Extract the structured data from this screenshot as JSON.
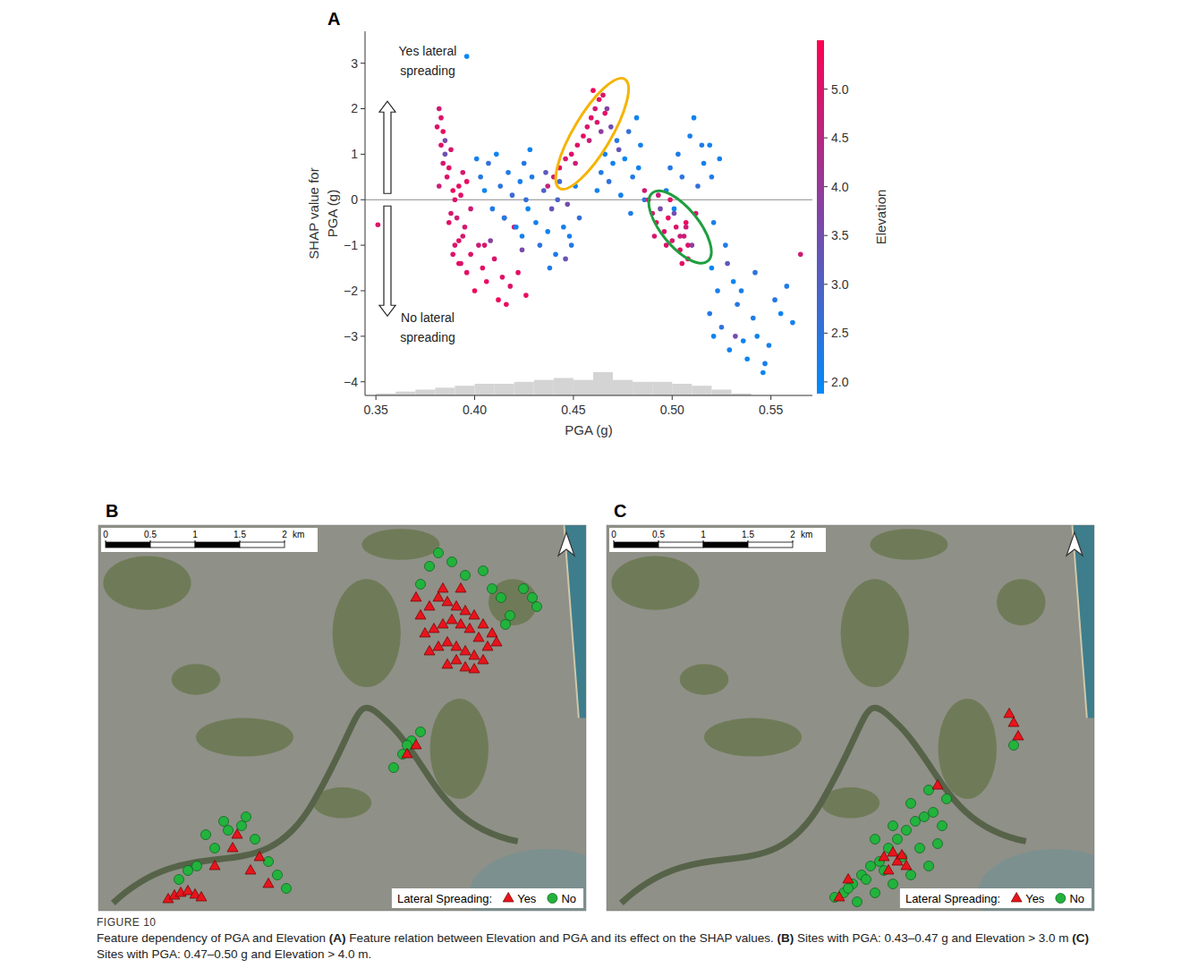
{
  "chart_data": {
    "type": "scatter",
    "letter": "A",
    "x_label": "PGA (g)",
    "y_label": "SHAP value for\nPGA (g)",
    "xlim": [
      0.3445,
      0.571
    ],
    "ylim": [
      -4.3,
      3.7
    ],
    "xticks": [
      0.35,
      {
        "value": 0.4,
        "label": "0.40"
      },
      0.45,
      {
        "value": 0.5,
        "label": "0.50"
      },
      0.55
    ],
    "yticks": [
      {
        "value": -4,
        "label": "−4"
      },
      {
        "value": -3,
        "label": "−3"
      },
      {
        "value": -2,
        "label": "−2"
      },
      {
        "value": -1,
        "label": "−1"
      },
      0,
      1,
      2,
      3
    ],
    "grid": false,
    "marker": "circle",
    "annotations": [
      "Yes lateral spreading",
      "No lateral spreading"
    ],
    "colorbar": {
      "label": "Elevation",
      "range": [
        1.88,
        5.5
      ],
      "colors": [
        "#008bfb",
        "#ff0052"
      ],
      "ticks": [
        {
          "value": 2,
          "label": "2.0"
        },
        2.5,
        {
          "value": 3,
          "label": "3.0"
        },
        3.5,
        {
          "value": 4,
          "label": "4.0"
        },
        4.5,
        {
          "value": 5,
          "label": "5.0"
        }
      ]
    },
    "histogram": {
      "bins": [
        0.35,
        0.36,
        0.37,
        0.38,
        0.39,
        0.4,
        0.41,
        0.42,
        0.43,
        0.44,
        0.45,
        0.46,
        0.47,
        0.48,
        0.49,
        0.5,
        0.51,
        0.52,
        0.53,
        0.54
      ],
      "counts": [
        1,
        2,
        3,
        4,
        5,
        6,
        6,
        7,
        8,
        9,
        8,
        12,
        8,
        7,
        7,
        6,
        5,
        3,
        1
      ]
    },
    "ellipses": [
      {
        "color": "#f5b400",
        "x": [
          0.443,
          0.476
        ],
        "y": [
          0.25,
          2.65
        ]
      },
      {
        "color": "#1f9e3f",
        "x": [
          0.49,
          0.518
        ],
        "y": [
          0.15,
          -1.35
        ]
      }
    ],
    "series": [
      {
        "x": [
          0.381,
          0.382,
          0.383,
          0.384,
          0.384,
          0.385,
          0.386,
          0.382,
          0.383,
          0.385,
          0.387,
          0.388
        ],
        "values": [
          1.6,
          2.0,
          1.2,
          0.8,
          1.5,
          1.0,
          0.5,
          0.3,
          1.8,
          1.3,
          0.7,
          1.1
        ],
        "elevation": [
          5.0,
          4.8,
          5.1,
          4.9,
          5.2,
          3.4,
          5.0,
          4.7,
          5.0,
          3.6,
          5.1,
          4.9
        ]
      },
      {
        "x": [
          0.351,
          0.387,
          0.388,
          0.389,
          0.39,
          0.391,
          0.392,
          0.393,
          0.394,
          0.396,
          0.398,
          0.389,
          0.392,
          0.395
        ],
        "values": [
          -0.55,
          -0.5,
          -0.3,
          0.2,
          0.0,
          -0.4,
          0.3,
          0.1,
          0.6,
          0.4,
          -0.2,
          -1.2,
          -0.9,
          -0.6
        ],
        "elevation": [
          5.0,
          5.1,
          4.9,
          5.2,
          5.0,
          4.8,
          5.1,
          5.0,
          4.9,
          5.2,
          4.8,
          5.0,
          5.1,
          4.9
        ]
      },
      {
        "x": [
          0.39,
          0.392,
          0.394,
          0.396,
          0.398,
          0.4,
          0.402,
          0.404,
          0.406,
          0.408,
          0.41,
          0.412,
          0.414,
          0.416,
          0.418,
          0.42,
          0.422,
          0.424,
          0.426,
          0.393,
          0.405,
          0.415
        ],
        "values": [
          -1.0,
          -1.4,
          -0.8,
          -1.6,
          -1.2,
          -2.0,
          -1.0,
          -1.5,
          -1.8,
          -0.9,
          -1.3,
          -2.2,
          -1.7,
          -2.3,
          -1.9,
          -0.6,
          -1.6,
          -1.1,
          -2.1,
          -1.4,
          -1.0,
          -0.4
        ],
        "elevation": [
          5.0,
          5.2,
          4.9,
          5.1,
          5.0,
          5.3,
          4.8,
          5.1,
          5.2,
          3.8,
          5.0,
          5.3,
          5.1,
          5.2,
          5.0,
          4.7,
          5.1,
          3.6,
          5.2,
          5.0,
          4.9,
          5.0
        ]
      },
      {
        "x": [
          0.401,
          0.403,
          0.405,
          0.407,
          0.409,
          0.411,
          0.413,
          0.415,
          0.417,
          0.419,
          0.421,
          0.423,
          0.425,
          0.427,
          0.429,
          0.424,
          0.426,
          0.428,
          0.396
        ],
        "values": [
          0.9,
          0.5,
          0.2,
          0.8,
          -0.2,
          1.0,
          0.3,
          -0.4,
          0.6,
          0.1,
          -0.6,
          0.4,
          0.8,
          -0.2,
          0.5,
          -0.8,
          0.0,
          1.1,
          3.15
        ],
        "elevation": [
          2.2,
          2.4,
          2.1,
          2.6,
          2.3,
          2.1,
          2.5,
          2.2,
          2.3,
          2.7,
          2.1,
          2.2,
          2.4,
          2.0,
          2.3,
          2.2,
          2.6,
          2.1,
          2.0
        ]
      },
      {
        "x": [
          0.431,
          0.433,
          0.435,
          0.437,
          0.439,
          0.441,
          0.443,
          0.445,
          0.447,
          0.449,
          0.451,
          0.453,
          0.436,
          0.442,
          0.448,
          0.438,
          0.446
        ],
        "values": [
          -0.5,
          -1.0,
          0.2,
          -0.7,
          -0.2,
          -1.2,
          0.4,
          -0.6,
          -0.1,
          -1.0,
          0.3,
          -0.4,
          0.6,
          0.0,
          -0.8,
          -1.5,
          -1.3
        ],
        "elevation": [
          2.2,
          2.5,
          3.0,
          2.1,
          3.3,
          2.3,
          2.8,
          2.2,
          3.5,
          2.4,
          2.1,
          2.6,
          3.2,
          2.9,
          2.2,
          2.3,
          3.4
        ]
      },
      {
        "x": [
          0.437,
          0.44,
          0.443,
          0.446,
          0.449,
          0.452,
          0.455,
          0.457,
          0.459,
          0.461,
          0.463,
          0.465,
          0.467,
          0.469,
          0.458,
          0.462,
          0.466,
          0.46,
          0.464,
          0.451
        ],
        "values": [
          0.3,
          0.5,
          0.7,
          0.9,
          1.0,
          1.2,
          1.4,
          1.6,
          1.8,
          2.0,
          2.2,
          2.3,
          2.0,
          1.6,
          1.3,
          1.7,
          1.9,
          2.4,
          1.5,
          0.8
        ],
        "elevation": [
          4.6,
          4.8,
          5.0,
          4.9,
          5.1,
          5.0,
          5.2,
          5.0,
          5.1,
          4.9,
          5.2,
          5.0,
          3.8,
          3.5,
          4.7,
          5.0,
          5.1,
          5.3,
          3.9,
          4.8
        ]
      },
      {
        "x": [
          0.462,
          0.464,
          0.466,
          0.468,
          0.47,
          0.472,
          0.474,
          0.476,
          0.478,
          0.48,
          0.482,
          0.484,
          0.486,
          0.479,
          0.483,
          0.473
        ],
        "values": [
          0.2,
          0.6,
          1.0,
          0.4,
          0.8,
          1.3,
          0.1,
          0.9,
          1.5,
          0.5,
          1.8,
          1.2,
          0.0,
          -0.3,
          0.7,
          1.1
        ],
        "elevation": [
          2.1,
          2.3,
          2.2,
          2.5,
          2.1,
          2.4,
          2.2,
          2.0,
          2.6,
          2.3,
          2.1,
          2.2,
          2.5,
          2.3,
          2.1,
          3.3
        ]
      },
      {
        "x": [
          0.486,
          0.488,
          0.49,
          0.492,
          0.494,
          0.496,
          0.498,
          0.5,
          0.502,
          0.504,
          0.506,
          0.508,
          0.51,
          0.493,
          0.497,
          0.501,
          0.505,
          0.491,
          0.499,
          0.507
        ],
        "values": [
          0.2,
          0.0,
          -0.3,
          -0.5,
          -0.2,
          -0.7,
          -0.4,
          -0.9,
          -0.6,
          -1.1,
          -0.8,
          -1.3,
          -1.0,
          0.1,
          -1.0,
          -0.3,
          -1.4,
          -0.8,
          0.0,
          -0.5
        ],
        "elevation": [
          4.8,
          5.0,
          4.9,
          5.1,
          3.6,
          5.0,
          5.2,
          4.9,
          5.0,
          5.1,
          4.8,
          5.2,
          3.8,
          4.7,
          5.0,
          3.5,
          5.1,
          4.9,
          5.0,
          5.2
        ]
      },
      {
        "x": [
          0.497,
          0.499,
          0.501,
          0.503,
          0.505,
          0.507,
          0.509,
          0.511,
          0.513,
          0.515,
          0.508,
          0.512,
          0.516,
          0.504
        ],
        "values": [
          0.2,
          0.7,
          -0.2,
          1.0,
          0.5,
          -0.6,
          1.4,
          1.8,
          0.3,
          1.2,
          -1.0,
          -0.3,
          0.8,
          -0.8
        ],
        "elevation": [
          2.2,
          2.4,
          2.1,
          2.3,
          2.5,
          4.8,
          2.2,
          2.1,
          2.6,
          2.3,
          5.0,
          4.9,
          2.2,
          4.7
        ]
      },
      {
        "x": [
          0.519,
          0.52,
          0.521,
          0.52,
          0.519,
          0.521,
          0.523,
          0.525,
          0.527,
          0.529,
          0.531,
          0.533,
          0.528,
          0.532,
          0.524
        ],
        "values": [
          1.2,
          0.5,
          -0.5,
          -1.5,
          -2.5,
          -3.0,
          -2.0,
          -2.8,
          -1.0,
          -3.3,
          -1.8,
          -2.3,
          -1.4,
          -3.0,
          0.9
        ],
        "elevation": [
          2.1,
          2.3,
          2.2,
          2.0,
          2.4,
          2.1,
          2.2,
          2.5,
          2.3,
          2.1,
          2.0,
          2.4,
          3.2,
          3.5,
          2.2
        ]
      },
      {
        "x": [
          0.535,
          0.538,
          0.541,
          0.543,
          0.546,
          0.549,
          0.552,
          0.555,
          0.558,
          0.561,
          0.565,
          0.536,
          0.542,
          0.547
        ],
        "values": [
          -2.0,
          -3.5,
          -2.6,
          -3.0,
          -3.8,
          -3.2,
          -2.2,
          -2.5,
          -1.9,
          -2.7,
          -1.2,
          -3.1,
          -1.6,
          -3.6
        ],
        "elevation": [
          2.2,
          2.0,
          2.3,
          2.1,
          2.0,
          2.2,
          2.4,
          2.1,
          2.3,
          2.2,
          4.8,
          2.1,
          2.5,
          2.2
        ]
      }
    ]
  },
  "maps": [
    {
      "letter": "B",
      "xlim": [
        0,
        5.45
      ],
      "ylim": [
        0,
        4.31
      ],
      "scale_ticks": [
        0,
        0.5,
        1,
        1.5,
        2
      ],
      "scale_unit": "km",
      "legend_title": "Lateral Spreading:",
      "classes": [
        {
          "name": "Yes",
          "color": "#e8141c",
          "marker": "triangle",
          "x": [
            3.6,
            3.7,
            3.8,
            3.9,
            4.0,
            4.1,
            4.2,
            4.3,
            4.4,
            3.65,
            3.75,
            3.85,
            3.95,
            4.05,
            4.15,
            4.25,
            4.35,
            3.7,
            3.8,
            3.9,
            4.0,
            4.1,
            4.2,
            4.3,
            3.9,
            4.0,
            4.1,
            4.2,
            3.55,
            4.45,
            3.85,
            4.05,
            0.78,
            0.85,
            0.92,
            1.0,
            1.08,
            1.15,
            1.3,
            1.5,
            1.55,
            1.7,
            1.8,
            1.9,
            3.45,
            3.55
          ],
          "y": [
            3.3,
            3.4,
            3.5,
            3.45,
            3.4,
            3.35,
            3.3,
            3.2,
            3.1,
            3.1,
            3.15,
            3.2,
            3.25,
            3.2,
            3.15,
            3.05,
            2.95,
            2.9,
            2.95,
            3.0,
            2.95,
            2.9,
            2.85,
            2.8,
            2.75,
            2.8,
            2.72,
            2.7,
            3.5,
            3.0,
            3.6,
            3.6,
            0.13,
            0.17,
            0.2,
            0.22,
            0.18,
            0.15,
            0.5,
            0.7,
            0.85,
            0.45,
            0.6,
            0.3,
            1.75,
            1.85
          ]
        },
        {
          "name": "No",
          "color": "#22b33d",
          "marker": "circle",
          "x": [
            3.7,
            3.8,
            3.95,
            4.1,
            4.3,
            4.5,
            4.6,
            4.85,
            4.9,
            4.75,
            3.6,
            4.4,
            4.55,
            0.9,
            1.0,
            1.1,
            1.3,
            1.45,
            1.6,
            1.75,
            1.9,
            2.0,
            2.1,
            1.2,
            1.4,
            1.65,
            3.3,
            3.4,
            3.5,
            3.6,
            3.45
          ],
          "y": [
            3.85,
            4.0,
            3.9,
            3.75,
            3.8,
            3.5,
            3.3,
            3.5,
            3.4,
            3.6,
            3.65,
            3.6,
            3.2,
            0.35,
            0.45,
            0.5,
            0.7,
            0.9,
            0.95,
            0.8,
            0.55,
            0.4,
            0.25,
            0.85,
            1.0,
            1.05,
            1.6,
            1.75,
            1.9,
            2.0,
            1.85
          ]
        }
      ]
    },
    {
      "letter": "C",
      "xlim": [
        0,
        5.45
      ],
      "ylim": [
        0,
        4.31
      ],
      "scale_ticks": [
        0,
        0.5,
        1,
        1.5,
        2
      ],
      "scale_unit": "km",
      "legend_title": "Lateral Spreading:",
      "classes": [
        {
          "name": "Yes",
          "color": "#e8141c",
          "marker": "triangle",
          "x": [
            3.1,
            3.2,
            3.25,
            3.3,
            3.35,
            3.15,
            2.6,
            3.7,
            4.5,
            4.55,
            4.6,
            2.7
          ],
          "y": [
            0.6,
            0.65,
            0.55,
            0.62,
            0.5,
            0.45,
            0.15,
            1.4,
            2.2,
            2.1,
            1.95,
            0.35
          ]
        },
        {
          "name": "No",
          "color": "#22b33d",
          "marker": "circle",
          "x": [
            2.55,
            2.65,
            2.75,
            2.85,
            2.95,
            3.05,
            3.15,
            3.25,
            3.35,
            3.45,
            3.55,
            3.65,
            3.75,
            2.7,
            2.9,
            3.1,
            3.3,
            3.5,
            3.7,
            2.8,
            3.0,
            3.2,
            3.4,
            3.6,
            3.0,
            3.2,
            3.4,
            3.8,
            3.6,
            4.55
          ],
          "y": [
            0.15,
            0.2,
            0.3,
            0.4,
            0.5,
            0.55,
            0.7,
            0.8,
            0.9,
            1.0,
            1.05,
            1.1,
            0.95,
            0.25,
            0.35,
            0.45,
            0.6,
            0.7,
            0.75,
            0.1,
            0.2,
            0.3,
            0.4,
            0.5,
            0.8,
            0.95,
            1.2,
            1.25,
            1.35,
            1.85
          ]
        }
      ]
    }
  ],
  "caption": {
    "label": "FIGURE 10",
    "segments": [
      {
        "text": "Feature dependency of PGA and Elevation ",
        "bold": false
      },
      {
        "text": "(A)",
        "bold": true
      },
      {
        "text": " Feature relation between Elevation and PGA and its effect on the SHAP values. ",
        "bold": false
      },
      {
        "text": "(B)",
        "bold": true
      },
      {
        "text": " Sites with PGA: 0.43–0.47 g and Elevation > 3.0 m ",
        "bold": false
      },
      {
        "text": "(C)",
        "bold": true
      },
      {
        "text": " Sites with PGA: 0.47–0.50 g and Elevation > 4.0 m.",
        "bold": false
      }
    ]
  }
}
